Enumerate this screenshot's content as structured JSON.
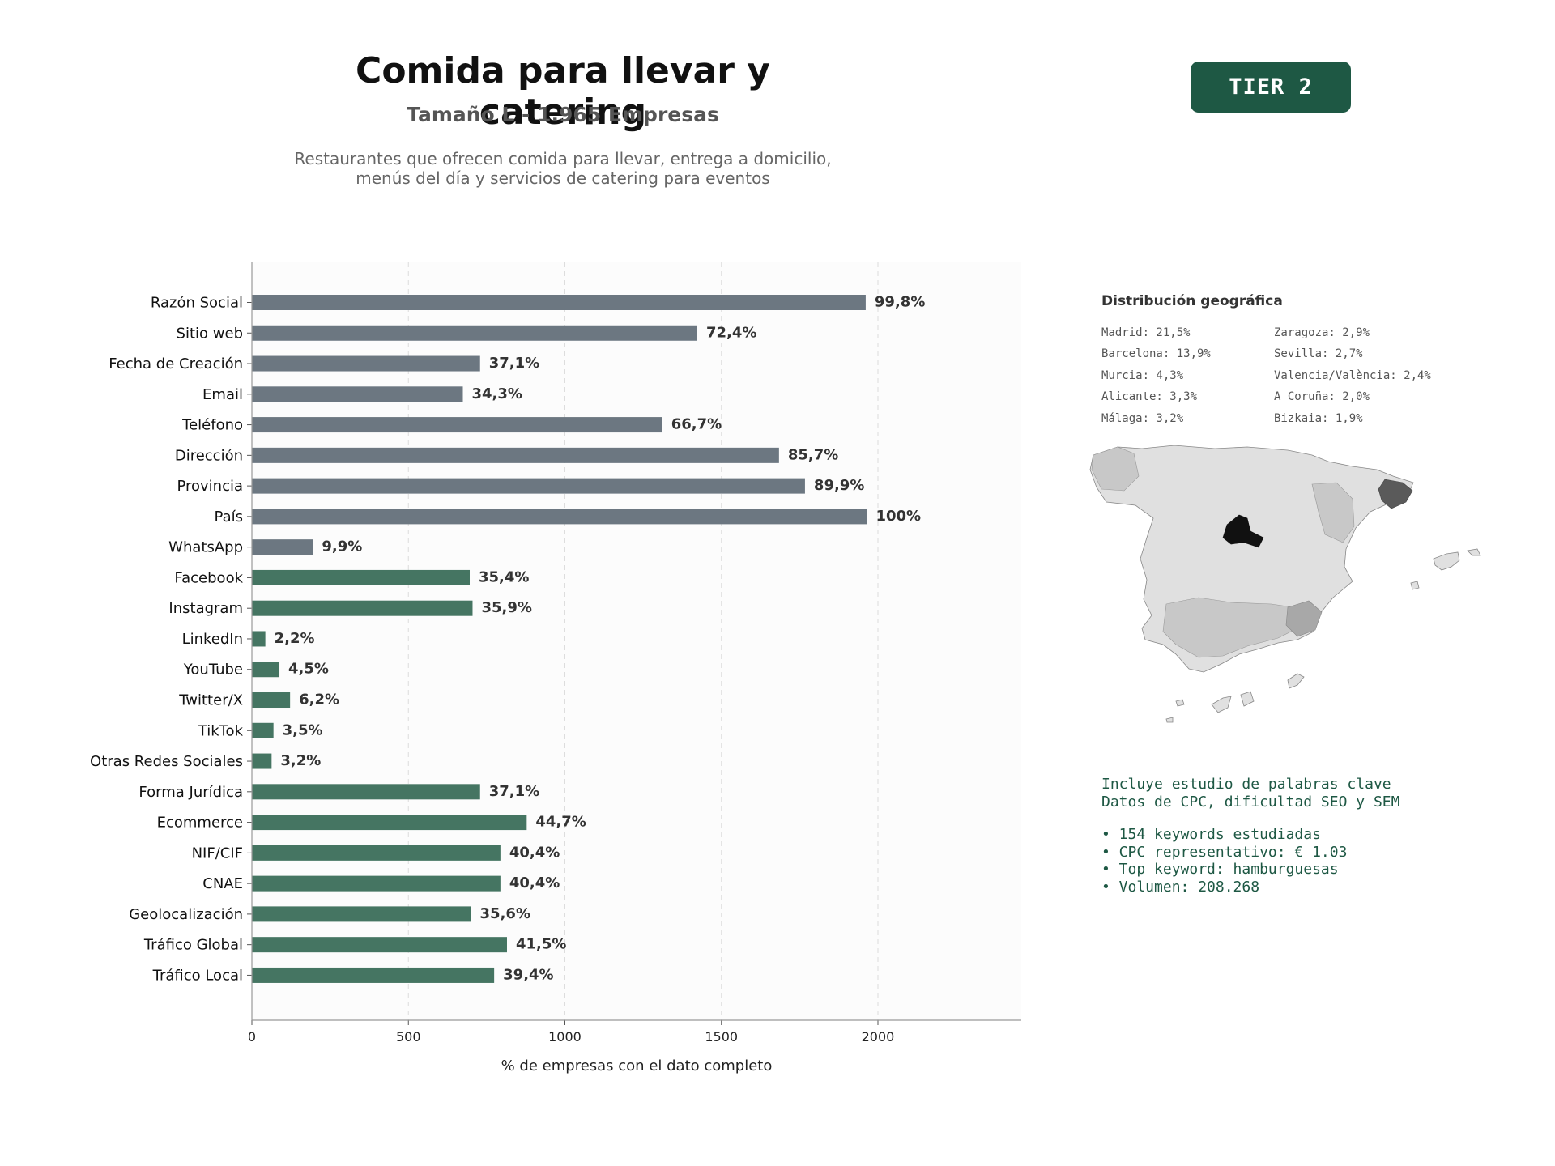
{
  "header": {
    "title": "Comida para llevar y catering",
    "subtitle": "Tamaño L - 1.965 Empresas",
    "description": "Restaurantes que ofrecen comida para llevar, entrega a domicilio,\nmenús del día y servicios de catering para eventos",
    "tier_badge": "TIER 2"
  },
  "colors": {
    "gray_bar": "#6c7781",
    "green_bar": "#457562",
    "accent": "#1e5844"
  },
  "chart_data": {
    "type": "bar",
    "orientation": "horizontal",
    "categories": [
      "Razón Social",
      "Sitio web",
      "Fecha de Creación",
      "Email",
      "Teléfono",
      "Dirección",
      "Provincia",
      "País",
      "WhatsApp",
      "Facebook",
      "Instagram",
      "LinkedIn",
      "YouTube",
      "Twitter/X",
      "TikTok",
      "Otras Redes Sociales",
      "Forma Jurídica",
      "Ecommerce",
      "NIF/CIF",
      "CNAE",
      "Geolocalización",
      "Tráfico Global",
      "Tráfico Local"
    ],
    "values": [
      1961,
      1423,
      729,
      674,
      1311,
      1684,
      1767,
      1965,
      195,
      696,
      705,
      43,
      88,
      122,
      69,
      63,
      729,
      878,
      794,
      794,
      700,
      815,
      774
    ],
    "labels": [
      "99,8%",
      "72,4%",
      "37,1%",
      "34,3%",
      "66,7%",
      "85,7%",
      "89,9%",
      "100%",
      "9,9%",
      "35,4%",
      "35,9%",
      "2,2%",
      "4,5%",
      "6,2%",
      "3,5%",
      "3,2%",
      "37,1%",
      "44,7%",
      "40,4%",
      "40,4%",
      "35,6%",
      "41,5%",
      "39,4%"
    ],
    "bar_colors": [
      "gray",
      "gray",
      "gray",
      "gray",
      "gray",
      "gray",
      "gray",
      "gray",
      "gray",
      "green",
      "green",
      "green",
      "green",
      "green",
      "green",
      "green",
      "green",
      "green",
      "green",
      "green",
      "green",
      "green",
      "green"
    ],
    "xlabel": "% de empresas con el dato completo",
    "ylabel": "",
    "xlim": [
      0,
      2458
    ],
    "xticks": [
      0,
      500,
      1000,
      1500,
      2000
    ],
    "grid": "vertical dashed"
  },
  "geo": {
    "title": "Distribución geográfica",
    "left": [
      "Madrid: 21,5%",
      "Barcelona: 13,9%",
      "Murcia: 4,3%",
      "Alicante: 3,3%",
      "Málaga: 3,2%"
    ],
    "right": [
      "Zaragoza: 2,9%",
      "Sevilla: 2,7%",
      "Valencia/València: 2,4%",
      "A Coruña: 2,0%",
      "Bizkaia: 1,9%"
    ]
  },
  "keywords": {
    "line1": "Incluye estudio de palabras clave",
    "line2": "Datos de CPC, dificultad SEO y SEM",
    "bullets": [
      "• 154 keywords estudiadas",
      "• CPC representativo: € 1.03",
      "• Top keyword: hamburguesas",
      "• Volumen: 208.268"
    ]
  }
}
